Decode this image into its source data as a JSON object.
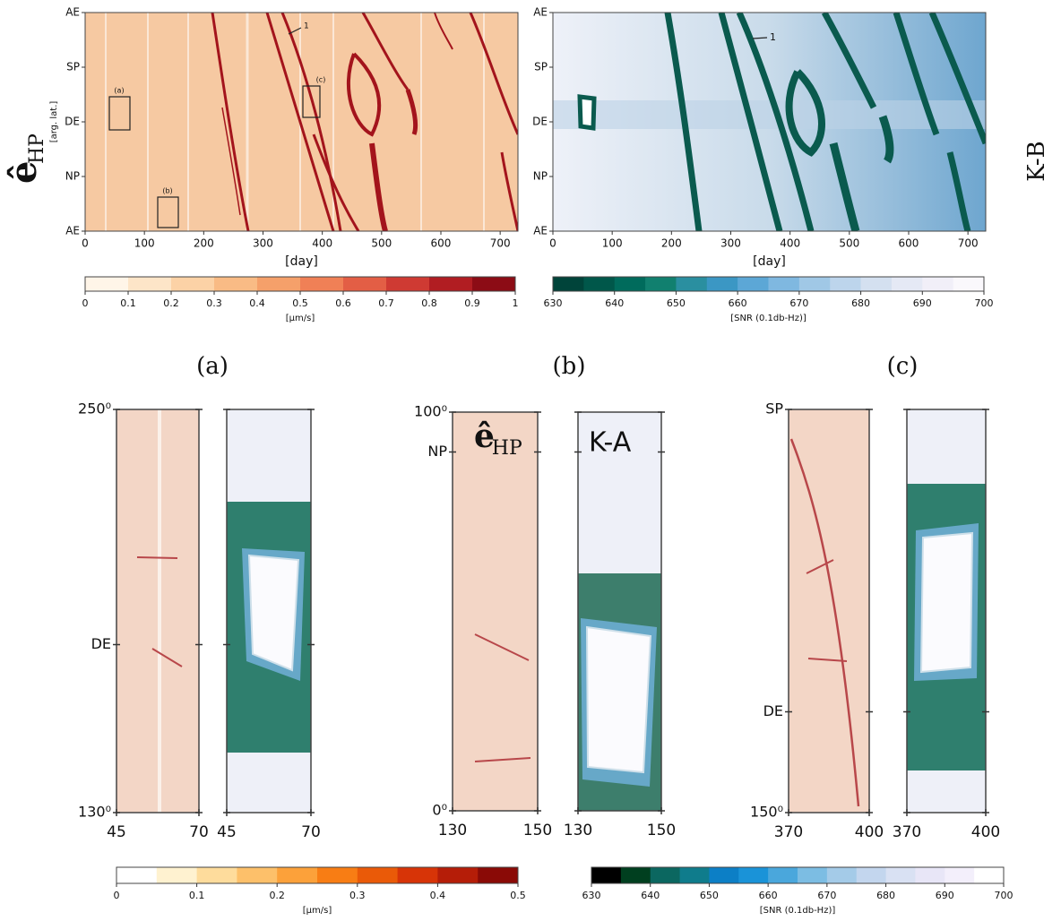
{
  "chart_data": [
    {
      "type": "heatmap",
      "xlabel": "[day]",
      "ylabel": "[arg. lat.]",
      "side_label": {
        "main": "ê",
        "sub": "HP"
      },
      "xlim": [
        0,
        730
      ],
      "xticks": [
        0,
        100,
        200,
        300,
        400,
        500,
        600,
        700
      ],
      "ylim": [
        0,
        360
      ],
      "yticks": [
        {
          "value": 0,
          "label": "AE"
        },
        {
          "value": 90,
          "label": "NP"
        },
        {
          "value": 180,
          "label": "DE"
        },
        {
          "value": 270,
          "label": "SP"
        },
        {
          "value": 360,
          "label": "AE"
        }
      ],
      "annotations": [
        "(a)",
        "(b)",
        "(c)",
        "1"
      ]
    },
    {
      "type": "heatmap",
      "xlabel": "[day]",
      "side_label": "K-B",
      "xlim": [
        0,
        730
      ],
      "xticks": [
        0,
        100,
        200,
        300,
        400,
        500,
        600,
        700
      ],
      "ylim": [
        0,
        360
      ],
      "yticks": [
        {
          "value": 0,
          "label": "AE"
        },
        {
          "value": 90,
          "label": "NP"
        },
        {
          "value": 180,
          "label": "DE"
        },
        {
          "value": 270,
          "label": "SP"
        },
        {
          "value": 360,
          "label": "AE"
        }
      ],
      "annotations": [
        "1"
      ]
    },
    {
      "type": "colorbar",
      "label": "[μm/s]",
      "lim": [
        0,
        1
      ],
      "ticks": [
        0,
        0.1,
        0.2,
        0.3,
        0.4,
        0.5,
        0.6,
        0.7,
        0.8,
        0.9,
        1
      ],
      "colors": [
        "#fff5e8",
        "#fde5c8",
        "#fcd2a6",
        "#f9bb85",
        "#f5a06a",
        "#f08056",
        "#e35e45",
        "#cf3a33",
        "#b11d22",
        "#8c0c15"
      ]
    },
    {
      "type": "colorbar",
      "label": "[SNR (0.1db-Hz)]",
      "lim": [
        630,
        700
      ],
      "ticks": [
        630,
        640,
        650,
        660,
        670,
        680,
        690,
        700
      ],
      "colors": [
        "#00443a",
        "#00574a",
        "#006b5c",
        "#11806f",
        "#2a8fa0",
        "#3b97c4",
        "#5ca7d6",
        "#7fb8e0",
        "#a0c8e6",
        "#bdd5ec",
        "#d4e0f0",
        "#e5e9f5",
        "#f1eff8",
        "#faf8fc"
      ]
    },
    {
      "type": "heatmap-pair",
      "title": "(a)",
      "ylim": [
        130,
        250
      ],
      "yticks": [
        {
          "value": 250,
          "label": "250⁰"
        },
        {
          "value": 180,
          "label": "DE"
        },
        {
          "value": 130,
          "label": "130⁰"
        }
      ],
      "panels": [
        {
          "xlim": [
            45,
            70
          ],
          "xticks": [
            45,
            70
          ]
        },
        {
          "xlim": [
            45,
            70
          ],
          "xticks": [
            45,
            70
          ]
        }
      ]
    },
    {
      "type": "heatmap-pair",
      "title": "(b)",
      "ylim": [
        0,
        100
      ],
      "yticks": [
        {
          "value": 100,
          "label": "100⁰"
        },
        {
          "value": 90,
          "label": "NP"
        },
        {
          "value": 0,
          "label": "0⁰"
        }
      ],
      "panels": [
        {
          "xlim": [
            130,
            150
          ],
          "xticks": [
            130,
            150
          ],
          "label": {
            "main": "ê",
            "sub": "HP"
          }
        },
        {
          "xlim": [
            130,
            150
          ],
          "xticks": [
            130,
            150
          ],
          "label": "K-A"
        }
      ]
    },
    {
      "type": "heatmap-pair",
      "title": "(c)",
      "ylim": [
        150,
        270
      ],
      "yticks": [
        {
          "value": 270,
          "label": "SP"
        },
        {
          "value": 180,
          "label": "DE"
        },
        {
          "value": 150,
          "label": "150⁰"
        }
      ],
      "panels": [
        {
          "xlim": [
            370,
            400
          ],
          "xticks": [
            370,
            400
          ]
        },
        {
          "xlim": [
            370,
            400
          ],
          "xticks": [
            370,
            400
          ]
        }
      ]
    },
    {
      "type": "colorbar",
      "label": "[μm/s]",
      "lim": [
        0,
        0.5
      ],
      "ticks": [
        0,
        0.1,
        0.2,
        0.3,
        0.4,
        0.5
      ],
      "colors": [
        "#ffffff",
        "#fff2d0",
        "#fedc9c",
        "#fdc06a",
        "#fca13a",
        "#f87d14",
        "#ea5a08",
        "#d73407",
        "#b51d08",
        "#8a0a06"
      ]
    },
    {
      "type": "colorbar",
      "label": "[SNR (0.1db-Hz)]",
      "lim": [
        630,
        700
      ],
      "ticks": [
        630,
        640,
        650,
        660,
        670,
        680,
        690,
        700
      ],
      "colors": [
        "#000000",
        "#003f1f",
        "#0b6760",
        "#0f7c8c",
        "#0c7fc6",
        "#1a93d8",
        "#4aa7dc",
        "#7cbde3",
        "#a4cbe8",
        "#c3d6ee",
        "#d9e1f3",
        "#e8e6f7",
        "#f3effb",
        "#ffffff"
      ]
    }
  ]
}
